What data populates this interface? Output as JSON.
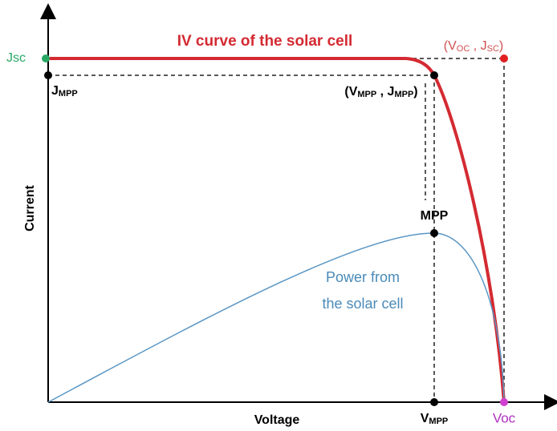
{
  "labels": {
    "jsc": "Jsc",
    "jmpp": {
      "main": "J",
      "sub": "MPP"
    },
    "curve_title": "IV curve of the solar cell",
    "voc_jsc": {
      "open": "(V",
      "sub1": "OC",
      "mid": " , J",
      "sub2": "SC",
      "close": ")"
    },
    "vmpp_jmpp": {
      "open": "(V",
      "sub1": "MPP",
      "mid": " , J",
      "sub2": "MPP",
      "close": ")"
    },
    "y_axis": "Current",
    "mpp": "MPP",
    "power_line1": "Power from",
    "power_line2": "the solar cell",
    "x_axis": "Voltage",
    "vmpp": {
      "main": "V",
      "sub": "MPP"
    },
    "voc": "Voc"
  }
}
